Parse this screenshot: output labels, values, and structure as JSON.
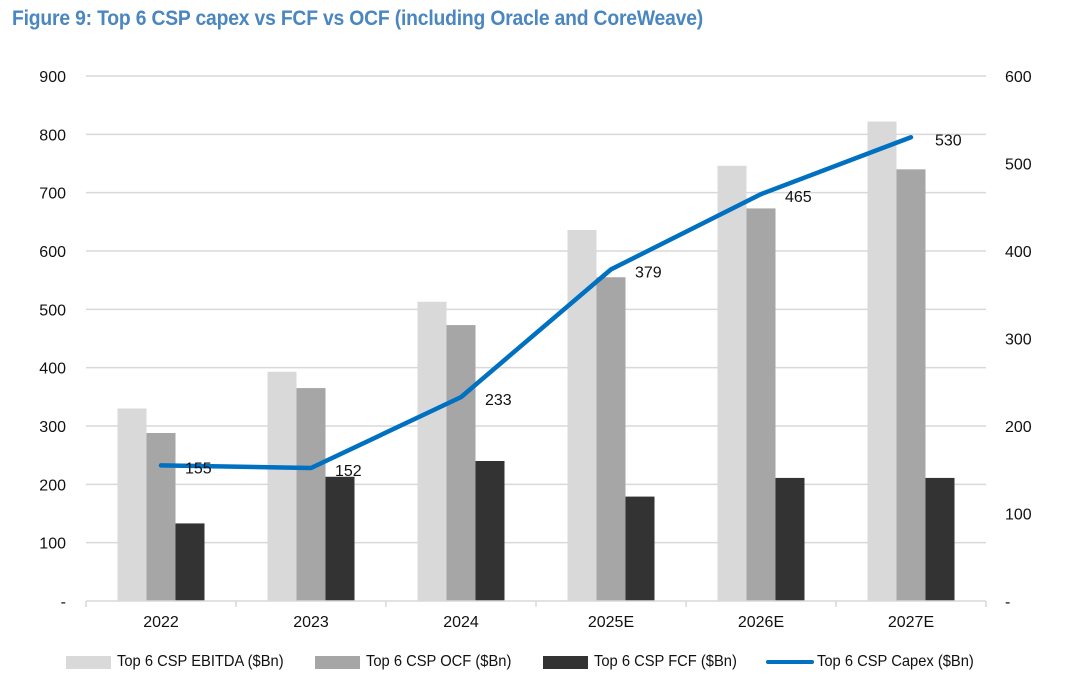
{
  "chart_data": {
    "type": "bar",
    "title": "Figure 9: Top 6 CSP capex vs FCF vs OCF (including Oracle and CoreWeave)",
    "categories": [
      "2022",
      "2023",
      "2024",
      "2025E",
      "2026E",
      "2027E"
    ],
    "series": [
      {
        "name": "Top 6 CSP EBITDA ($Bn)",
        "type": "bar",
        "axis": "left",
        "color": "#d9d9d9",
        "values": [
          330,
          393,
          513,
          636,
          746,
          822
        ]
      },
      {
        "name": "Top 6 CSP OCF ($Bn)",
        "type": "bar",
        "axis": "left",
        "color": "#a6a6a6",
        "values": [
          288,
          365,
          473,
          555,
          673,
          740
        ]
      },
      {
        "name": "Top 6 CSP FCF ($Bn)",
        "type": "bar",
        "axis": "left",
        "color": "#333333",
        "values": [
          133,
          213,
          240,
          179,
          211,
          211
        ]
      },
      {
        "name": "Top 6 CSP Capex ($Bn)",
        "type": "line",
        "axis": "right",
        "color": "#0070c0",
        "values": [
          155,
          152,
          233,
          379,
          465,
          530
        ],
        "data_labels": [
          "155",
          "152",
          "233",
          "379",
          "465",
          "530"
        ]
      }
    ],
    "y_left": {
      "min": 0,
      "max": 900,
      "step": 100,
      "tick_labels": [
        "-",
        "100",
        "200",
        "300",
        "400",
        "500",
        "600",
        "700",
        "800",
        "900"
      ]
    },
    "y_right": {
      "min": 0,
      "max": 600,
      "step": 100,
      "tick_labels": [
        "-",
        "100",
        "200",
        "300",
        "400",
        "500",
        "600"
      ]
    },
    "xlabel": "",
    "ylabel": "",
    "grid": true,
    "legend_position": "bottom"
  }
}
